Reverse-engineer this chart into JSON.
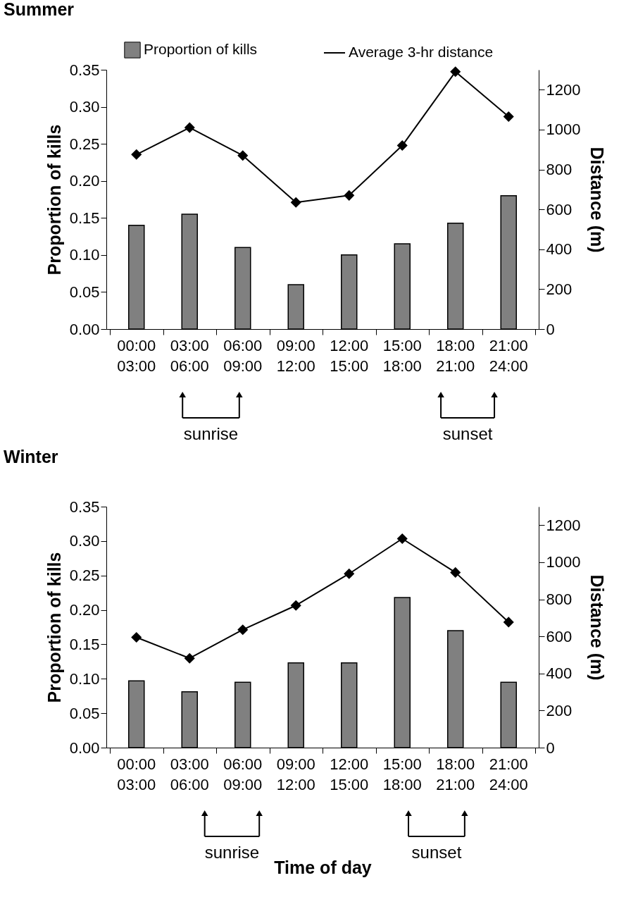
{
  "chart_data": [
    {
      "type": "bar",
      "title": "Summer",
      "ylabel": "Proportion of kills",
      "y2label": "Distance (m)",
      "categories": [
        "00:00\n03:00",
        "03:00\n06:00",
        "06:00\n09:00",
        "09:00\n12:00",
        "12:00\n15:00",
        "15:00\n18:00",
        "18:00\n21:00",
        "21:00\n24:00"
      ],
      "series": [
        {
          "name": "Proportion of kills",
          "color": "#808080",
          "values": [
            0.14,
            0.155,
            0.11,
            0.06,
            0.1,
            0.115,
            0.143,
            0.18
          ]
        },
        {
          "name": "Average 3-hr distance",
          "type": "line",
          "axis": "y2",
          "color": "#000000",
          "values": [
            875,
            1010,
            870,
            635,
            670,
            920,
            1290,
            1065
          ]
        }
      ],
      "ylim": [
        0,
        0.35
      ],
      "yticks": [
        {
          "value": 0,
          "label": "0.00"
        },
        {
          "value": 0.05,
          "label": "0.05"
        },
        {
          "value": 0.1,
          "label": "0.10"
        },
        {
          "value": 0.15,
          "label": "0.15"
        },
        {
          "value": 0.2,
          "label": "0.20"
        },
        {
          "value": 0.25,
          "label": "0.25"
        },
        {
          "value": 0.3,
          "label": "0.30"
        },
        {
          "value": 0.35,
          "label": "0.35"
        }
      ],
      "y2lim": [
        0,
        1300
      ],
      "y2ticks": [
        0,
        200,
        400,
        600,
        800,
        1000,
        1200
      ],
      "legend": "top",
      "marker": "diamond",
      "line_style": "solid",
      "annotations": [
        "sunrise",
        "sunset"
      ]
    },
    {
      "type": "bar",
      "title": "Winter",
      "xlabel": "Time of day",
      "ylabel": "Proportion of kills",
      "y2label": "Distance (m)",
      "categories": [
        "00:00\n03:00",
        "03:00\n06:00",
        "06:00\n09:00",
        "09:00\n12:00",
        "12:00\n15:00",
        "15:00\n18:00",
        "18:00\n21:00",
        "21:00\n24:00"
      ],
      "series": [
        {
          "color": "#808080",
          "values": [
            0.097,
            0.081,
            0.095,
            0.123,
            0.123,
            0.218,
            0.17,
            0.095
          ]
        },
        {
          "type": "line",
          "axis": "y2",
          "color": "#000000",
          "values": [
            595,
            482,
            636,
            767,
            938,
            1127,
            945,
            677
          ]
        }
      ],
      "ylim": [
        0,
        0.35
      ],
      "yticks": [
        {
          "value": 0,
          "label": "0.00"
        },
        {
          "value": 0.05,
          "label": "0.05"
        },
        {
          "value": 0.1,
          "label": "0.10"
        },
        {
          "value": 0.15,
          "label": "0.15"
        },
        {
          "value": 0.2,
          "label": "0.20"
        },
        {
          "value": 0.25,
          "label": "0.25"
        },
        {
          "value": 0.3,
          "label": "0.30"
        },
        {
          "value": 0.35,
          "label": "0.35"
        }
      ],
      "y2lim": [
        0,
        1300
      ],
      "y2ticks": [
        0,
        200,
        400,
        600,
        800,
        1000,
        1200
      ],
      "legend": false,
      "marker": "diamond",
      "line_style": "solid",
      "annotations": [
        "sunrise",
        "sunset"
      ]
    }
  ]
}
